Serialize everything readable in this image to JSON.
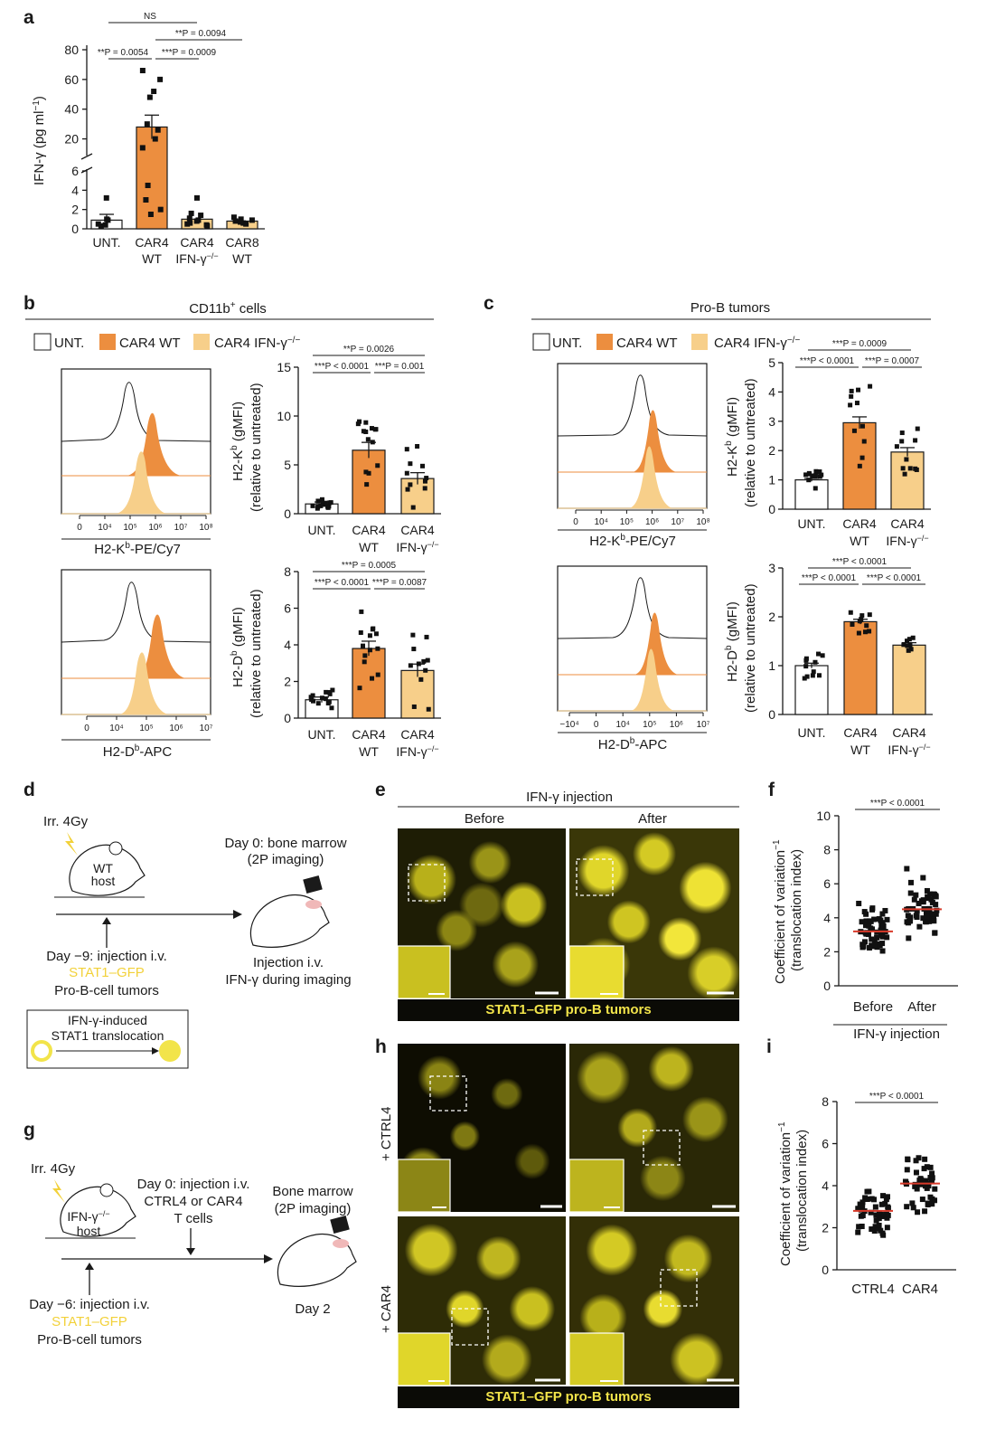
{
  "colors": {
    "unt": "#ffffff",
    "car4wt": "#ec8e3f",
    "car4ko": "#f7cf8a",
    "yellow": "#f2e44a",
    "dark": "#1a1a1a",
    "red": "#d83a2a"
  },
  "panels": {
    "a": "a",
    "b": "b",
    "c": "c",
    "d": "d",
    "e": "e",
    "f": "f",
    "g": "g",
    "h": "h",
    "i": "i"
  },
  "panel_a": {
    "ylabel": "IFN-γ (pg ml",
    "ylabel_sup": "−1",
    "ylabel_close": ")",
    "ns": "NS",
    "stats": [
      "**P = 0.0054",
      "***P = 0.0009",
      "**P = 0.0094"
    ],
    "ticks_upper": [
      "80",
      "60",
      "40",
      "20"
    ],
    "ticks_lower": [
      "6",
      "4",
      "2",
      "0"
    ],
    "categories": [
      [
        "UNT.",
        ""
      ],
      [
        "CAR4",
        "WT"
      ],
      [
        "CAR4",
        "IFN-γ"
      ],
      [
        "CAR8",
        "WT"
      ]
    ],
    "ko_sup": "−/−"
  },
  "legend": {
    "unt": "UNT.",
    "car4wt": "CAR4 WT",
    "car4ko": "CAR4 IFN-γ",
    "ko_sup": "−/−"
  },
  "panel_b": {
    "title": "CD11b",
    "title_sup": "+",
    "title_rest": " cells",
    "top_ylabel1": "H2-K",
    "top_ylabel_sup": "b",
    "top_ylabel_rest": " (gMFI)",
    "ylabel2": "(relative to untreated)",
    "bot_ylabel1": "H2-D",
    "bot_ylabel_sup": "b",
    "bot_ylabel_rest": " (gMFI)",
    "top_xlab": "H2-K",
    "top_xlab_sup": "b",
    "top_xlab_rest": "-PE/Cy7",
    "bot_xlab": "H2-D",
    "bot_xlab_sup": "b",
    "bot_xlab_rest": "-APC",
    "top_stats": [
      "***P < 0.0001",
      "***P = 0.001",
      "**P = 0.0026"
    ],
    "bot_stats": [
      "***P < 0.0001",
      "***P = 0.0087",
      "***P = 0.0005"
    ],
    "top_ticks": [
      "15",
      "10",
      "5",
      "0"
    ],
    "bot_ticks": [
      "8",
      "6",
      "4",
      "2",
      "0"
    ],
    "flow_ticks_top": [
      "0",
      "10⁴",
      "10⁵",
      "10⁶",
      "10⁷",
      "10⁸"
    ],
    "flow_ticks_bot": [
      "0",
      "10⁴",
      "10⁵",
      "10⁶",
      "10⁷"
    ]
  },
  "panel_c": {
    "title": "Pro-B tumors",
    "top_stats": [
      "***P < 0.0001",
      "***P = 0.0007",
      "***P = 0.0009"
    ],
    "bot_stats": [
      "***P < 0.0001",
      "***P < 0.0001",
      "***P < 0.0001"
    ],
    "top_ticks": [
      "5",
      "4",
      "3",
      "2",
      "1",
      "0"
    ],
    "bot_ticks": [
      "3",
      "2",
      "1",
      "0"
    ],
    "flow_ticks_top": [
      "0",
      "10⁴",
      "10⁵",
      "10⁶",
      "10⁷",
      "10⁸"
    ],
    "flow_ticks_bot": [
      "−10⁴",
      "0",
      "10⁴",
      "10⁵",
      "10⁶",
      "10⁷"
    ]
  },
  "bar_categories": [
    [
      "UNT.",
      ""
    ],
    [
      "CAR4",
      "WT"
    ],
    [
      "CAR4",
      "IFN-γ"
    ]
  ],
  "chart_data": [
    {
      "type": "bar",
      "panel": "a",
      "categories": [
        "UNT.",
        "CAR4 WT",
        "CAR4 IFN-γ−/−",
        "CAR8 WT"
      ],
      "values": [
        0.9,
        28,
        1.0,
        0.8
      ],
      "ylabel": "IFN-γ (pg ml−1)"
    },
    {
      "type": "bar",
      "panel": "b-top",
      "categories": [
        "UNT.",
        "CAR4 WT",
        "CAR4 IFN-γ−/−"
      ],
      "values": [
        1.0,
        6.5,
        3.6
      ],
      "ylim": [
        0,
        15
      ]
    },
    {
      "type": "bar",
      "panel": "b-bottom",
      "categories": [
        "UNT.",
        "CAR4 WT",
        "CAR4 IFN-γ−/−"
      ],
      "values": [
        1.0,
        3.8,
        2.6
      ],
      "ylim": [
        0,
        8
      ]
    },
    {
      "type": "bar",
      "panel": "c-top",
      "categories": [
        "UNT.",
        "CAR4 WT",
        "CAR4 IFN-γ−/−"
      ],
      "values": [
        1.0,
        2.95,
        1.95
      ],
      "ylim": [
        0,
        5
      ]
    },
    {
      "type": "bar",
      "panel": "c-bottom",
      "categories": [
        "UNT.",
        "CAR4 WT",
        "CAR4 IFN-γ−/−"
      ],
      "values": [
        1.0,
        1.9,
        1.42
      ],
      "ylim": [
        0,
        3
      ]
    },
    {
      "type": "scatter",
      "panel": "f",
      "categories": [
        "Before",
        "After"
      ],
      "means": [
        3.2,
        4.5
      ],
      "ylim": [
        0,
        10
      ]
    },
    {
      "type": "scatter",
      "panel": "i",
      "categories": [
        "CTRL4",
        "CAR4"
      ],
      "means": [
        2.8,
        4.1
      ],
      "ylim": [
        0,
        8
      ]
    }
  ],
  "panel_d": {
    "irr": "Irr. 4Gy",
    "host1": "WT",
    "host2": "host",
    "day0a": "Day 0: bone marrow",
    "day0b": "(2P imaging)",
    "day9": "Day −9: injection i.v.",
    "stat": "STAT1–GFP",
    "prob": "Pro-B-cell tumors",
    "inj1": "Injection i.v.",
    "inj2": "IFN-γ during imaging",
    "box1": "IFN-γ-induced",
    "box2": "STAT1 translocation"
  },
  "panel_e": {
    "title": "IFN-γ injection",
    "before": "Before",
    "after": "After",
    "caption": "STAT1–GFP pro-B tumors"
  },
  "panel_f": {
    "ylabel1": "Coefficient of variation",
    "ylabel_sup": "−1",
    "ylabel2": "(translocation index)",
    "stat": "***P < 0.0001",
    "ticks": [
      "10",
      "8",
      "6",
      "4",
      "2",
      "0"
    ],
    "cats": [
      "Before",
      "After"
    ],
    "xlabel": "IFN-γ injection"
  },
  "panel_g": {
    "irr": "Irr. 4Gy",
    "host1": "IFN-γ",
    "host_sup": "−/−",
    "host2": "host",
    "day0a": "Day 0: injection i.v.",
    "day0b": "CTRL4 or CAR4",
    "day0c": "T cells",
    "bm1": "Bone marrow",
    "bm2": "(2P imaging)",
    "day2": "Day 2",
    "day6": "Day −6: injection i.v.",
    "stat": "STAT1–GFP",
    "prob": "Pro-B-cell tumors"
  },
  "panel_h": {
    "row1": "+ CTRL4",
    "row2": "+ CAR4",
    "caption": "STAT1–GFP pro-B tumors"
  },
  "panel_i": {
    "ylabel1": "Coefficient of variation",
    "ylabel_sup": "−1",
    "ylabel2": "(translocation index)",
    "stat": "***P < 0.0001",
    "ticks": [
      "8",
      "6",
      "4",
      "2",
      "0"
    ],
    "cats": [
      "CTRL4",
      "CAR4"
    ]
  }
}
